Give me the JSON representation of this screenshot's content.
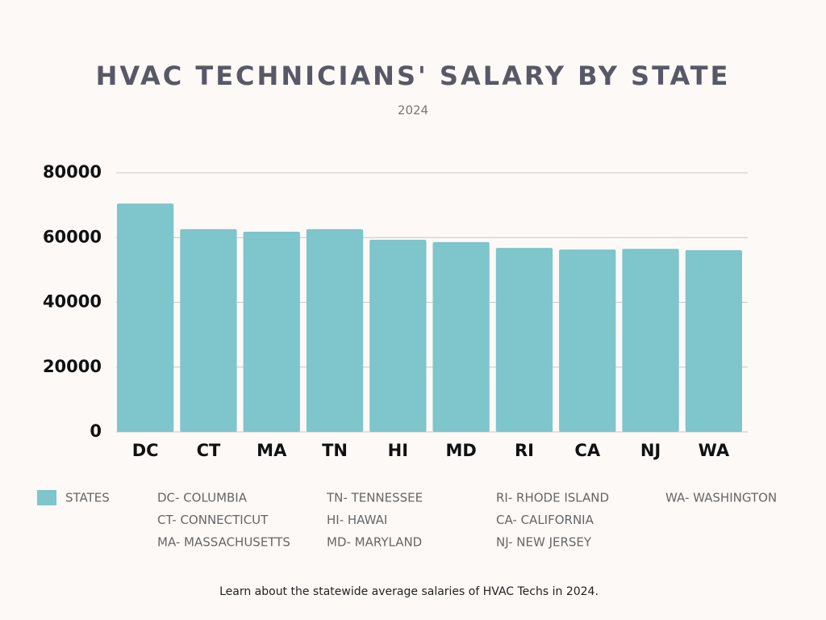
{
  "chart_data": {
    "type": "bar",
    "title": "HVAC TECHNICIANS' SALARY BY STATE",
    "subtitle": "2024",
    "categories": [
      "DC",
      "CT",
      "MA",
      "TN",
      "HI",
      "MD",
      "RI",
      "CA",
      "NJ",
      "WA"
    ],
    "series": [
      {
        "name": "STATES",
        "color": "#7ec5cc",
        "values": [
          70500,
          62600,
          61800,
          62600,
          59300,
          58600,
          56800,
          56300,
          56500,
          56100
        ]
      }
    ],
    "ylim": [
      0,
      80000
    ],
    "yticks": [
      0,
      20000,
      40000,
      60000,
      80000
    ],
    "grid": true,
    "legend_notes": [
      "DC- COLUMBIA",
      "CT- CONNECTICUT",
      "MA- MASSACHUSETTS",
      "TN- TENNESSEE",
      "HI- HAWAI",
      "MD- MARYLAND",
      "RI- RHODE ISLAND",
      "CA- CALIFORNIA",
      "NJ- NEW JERSEY",
      "WA- WASHINGTON"
    ],
    "caption": "Learn about the statewide average salaries of HVAC Techs in 2024."
  }
}
